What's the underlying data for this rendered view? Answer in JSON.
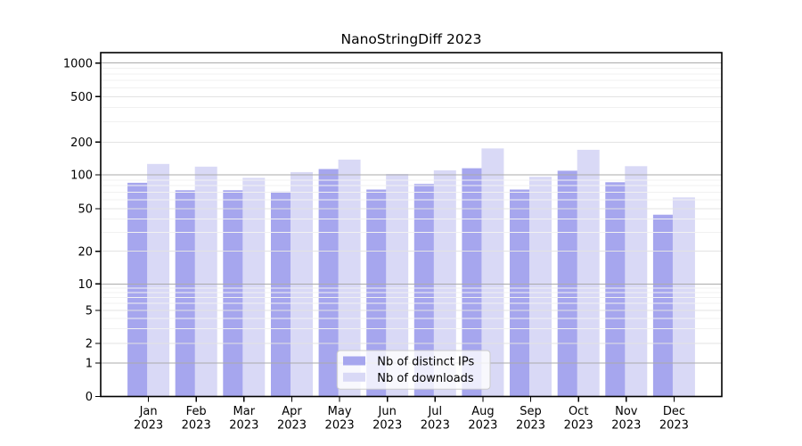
{
  "figure": {
    "background": "#ffffff"
  },
  "chart_data": {
    "type": "bar",
    "title": "NanoStringDiff 2023",
    "categories": [
      "Jan",
      "Feb",
      "Mar",
      "Apr",
      "May",
      "Jun",
      "Jul",
      "Aug",
      "Sep",
      "Oct",
      "Nov",
      "Dec"
    ],
    "x_tick_second_line": "2023",
    "series": [
      {
        "name": "Nb of distinct IPs",
        "color": "#a6a6ee",
        "values": [
          85,
          73,
          73,
          71,
          113,
          74,
          83,
          115,
          74,
          109,
          86,
          44
        ]
      },
      {
        "name": "Nb of downloads",
        "color": "#d9d9f6",
        "values": [
          126,
          119,
          94,
          106,
          138,
          102,
          110,
          175,
          96,
          170,
          120,
          63
        ]
      }
    ],
    "y_ticks": [
      0,
      1,
      2,
      5,
      10,
      20,
      50,
      100,
      200,
      500,
      1000
    ],
    "ylim": [
      0,
      1000
    ],
    "y_scale": "log-like",
    "grid": true,
    "legend_position": "lower center",
    "legend_entries": [
      "Nb of distinct IPs",
      "Nb of downloads"
    ],
    "colors": {
      "bar_ips": "#a6a6ee",
      "bar_downloads": "#d9d9f6",
      "major_gridline": "#ababab",
      "labeled_gridline": "#e3e3e3",
      "minor_gridline": "#f1f1f1",
      "axis": "#000000",
      "legend_border": "#cccccc",
      "legend_background": "#ffffff"
    }
  }
}
